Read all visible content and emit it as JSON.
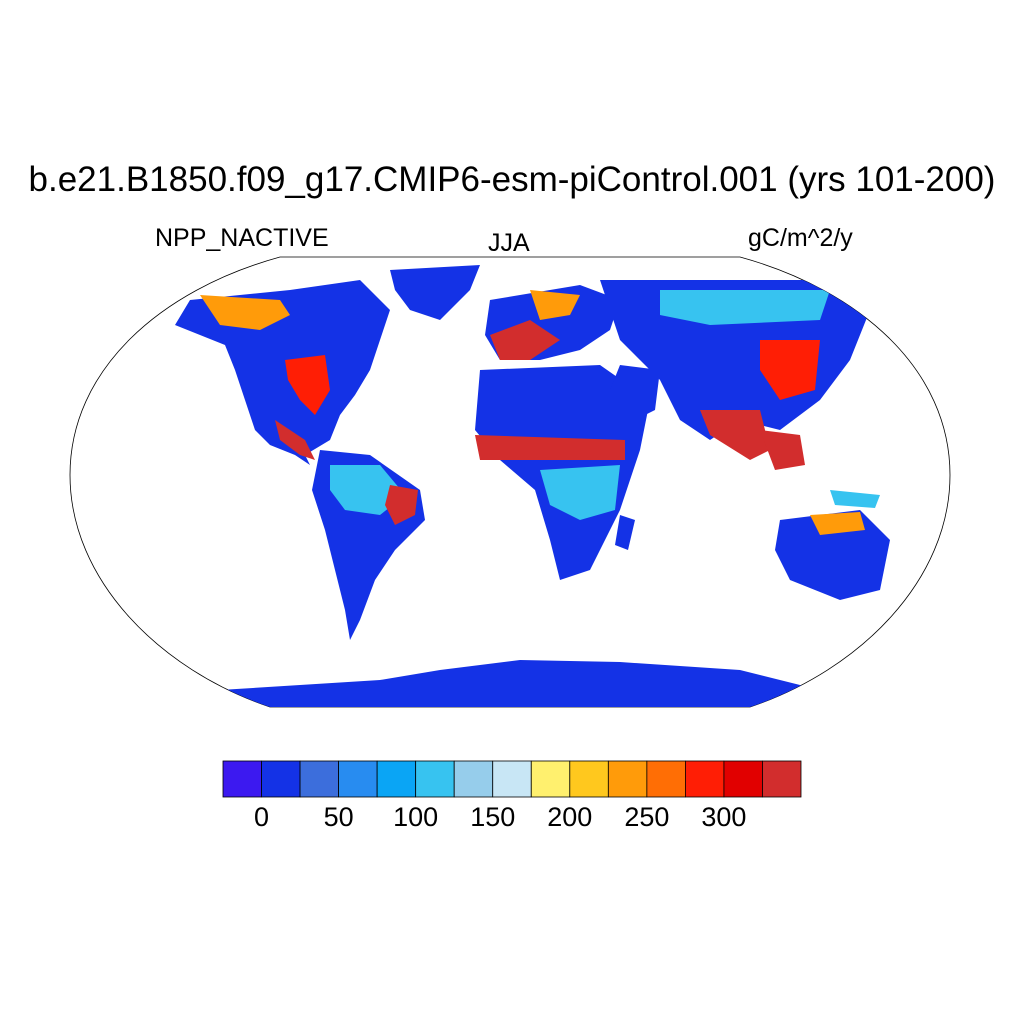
{
  "title": "b.e21.B1850.f09_g17.CMIP6-esm-piControl.001 (yrs 101-200)",
  "left_subtitle": "NPP_NACTIVE",
  "center_subtitle": "JJA",
  "right_subtitle": "gC/m^2/y",
  "colorbar": {
    "colors": [
      "#3c19f0",
      "#1432e6",
      "#3c6edc",
      "#288cf0",
      "#0aa5f5",
      "#37c3f0",
      "#96cdeb",
      "#c8e6f5",
      "#fff06e",
      "#ffc81e",
      "#ff9b0a",
      "#ff6e05",
      "#ff1e05",
      "#e10000",
      "#d22d2d"
    ],
    "tick_labels": [
      "0",
      "50",
      "100",
      "150",
      "200",
      "250",
      "300"
    ]
  },
  "map": {
    "projection": "Robinson",
    "ocean_color": "#ffffff",
    "land_colors": {
      "low": "#1432e6",
      "mid": "#37c3f0",
      "high": "#ff1e05",
      "highest": "#d22d2d",
      "warm": "#ff9b0a"
    }
  }
}
